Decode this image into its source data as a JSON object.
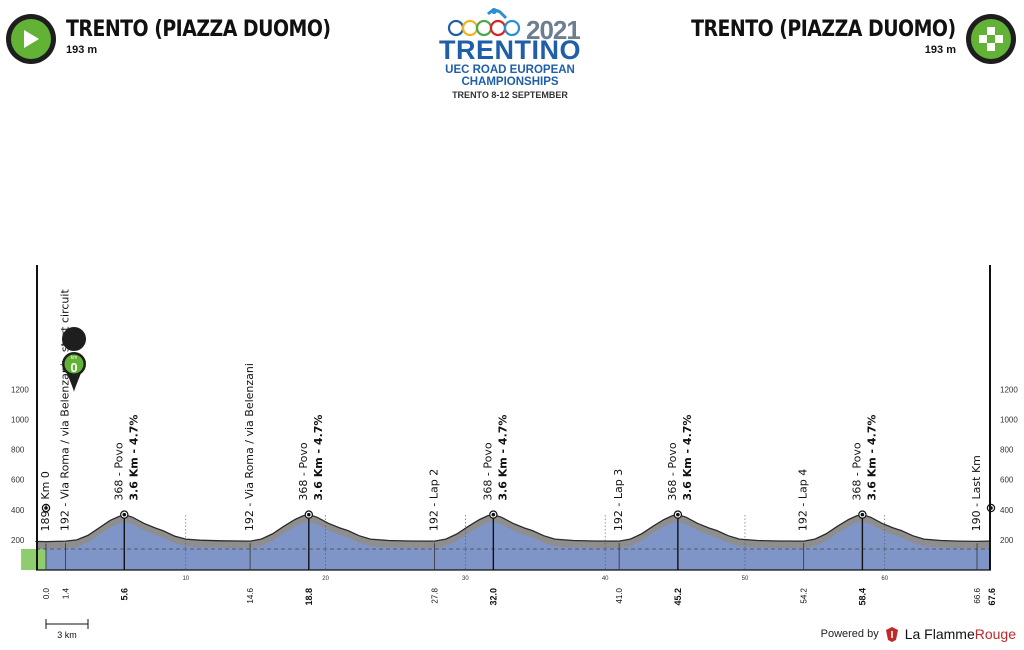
{
  "header": {
    "start": {
      "name": "TRENTO (PIAZZA DUOMO)",
      "altitude": "193 m"
    },
    "finish": {
      "name": "TRENTO (PIAZZA DUOMO)",
      "altitude": "193 m"
    },
    "logo": {
      "year": "2021",
      "name": "TRENTINO",
      "line1": "UEC ROAD EUROPEAN",
      "line2": "CHAMPIONSHIPS",
      "dates": "TRENTO 8-12 SEPTEMBER"
    }
  },
  "km0_marker": {
    "top": "km",
    "bottom": "0"
  },
  "scale_bar_label": "3 km",
  "footer": {
    "powered": "Powered by",
    "brand_a": "La Flamme",
    "brand_b": "Rouge"
  },
  "colors": {
    "profile_fill": "#7f95c8",
    "ground": "#8e8e8e",
    "neutral_zone": "#8fcc6e",
    "accent_green": "#62b335"
  },
  "chart_data": {
    "type": "area",
    "x_unit": "km",
    "y_unit": "m",
    "xlim": [
      -2.5,
      67.6
    ],
    "ylim": [
      0,
      1300
    ],
    "y_ticks": [
      200,
      400,
      600,
      800,
      1000,
      1200
    ],
    "x_ticks": [
      10,
      20,
      30,
      40,
      50,
      60
    ],
    "elevation": [
      [
        -2.5,
        193
      ],
      [
        -1.5,
        190
      ],
      [
        0,
        189
      ],
      [
        1.4,
        192
      ],
      [
        2.2,
        200
      ],
      [
        3,
        230
      ],
      [
        3.8,
        280
      ],
      [
        4.6,
        330
      ],
      [
        5.2,
        355
      ],
      [
        5.6,
        368
      ],
      [
        6.2,
        350
      ],
      [
        7,
        310
      ],
      [
        7.8,
        280
      ],
      [
        8.4,
        260
      ],
      [
        9.2,
        225
      ],
      [
        10,
        205
      ],
      [
        11,
        198
      ],
      [
        12.5,
        194
      ],
      [
        14.6,
        192
      ],
      [
        15.4,
        205
      ],
      [
        16.2,
        240
      ],
      [
        17,
        290
      ],
      [
        17.8,
        335
      ],
      [
        18.4,
        360
      ],
      [
        18.8,
        368
      ],
      [
        19.4,
        350
      ],
      [
        20.2,
        310
      ],
      [
        21,
        280
      ],
      [
        21.6,
        262
      ],
      [
        22.4,
        228
      ],
      [
        23.2,
        205
      ],
      [
        24.5,
        196
      ],
      [
        26,
        193
      ],
      [
        27.8,
        192
      ],
      [
        28.6,
        205
      ],
      [
        29.4,
        240
      ],
      [
        30.2,
        290
      ],
      [
        31,
        335
      ],
      [
        31.6,
        360
      ],
      [
        32,
        368
      ],
      [
        32.6,
        350
      ],
      [
        33.4,
        310
      ],
      [
        34.2,
        280
      ],
      [
        34.8,
        262
      ],
      [
        35.6,
        228
      ],
      [
        36.4,
        205
      ],
      [
        37.7,
        196
      ],
      [
        39.2,
        193
      ],
      [
        41,
        192
      ],
      [
        41.8,
        205
      ],
      [
        42.6,
        240
      ],
      [
        43.4,
        290
      ],
      [
        44.2,
        335
      ],
      [
        44.8,
        360
      ],
      [
        45.2,
        368
      ],
      [
        45.8,
        350
      ],
      [
        46.6,
        310
      ],
      [
        47.4,
        280
      ],
      [
        48,
        262
      ],
      [
        48.8,
        228
      ],
      [
        49.6,
        205
      ],
      [
        50.9,
        196
      ],
      [
        52.4,
        193
      ],
      [
        54.2,
        192
      ],
      [
        55,
        205
      ],
      [
        55.8,
        240
      ],
      [
        56.6,
        290
      ],
      [
        57.4,
        335
      ],
      [
        58,
        360
      ],
      [
        58.4,
        368
      ],
      [
        59,
        350
      ],
      [
        59.8,
        310
      ],
      [
        60.6,
        280
      ],
      [
        61.2,
        262
      ],
      [
        62,
        228
      ],
      [
        62.8,
        205
      ],
      [
        64,
        196
      ],
      [
        65.3,
        192
      ],
      [
        66.6,
        190
      ],
      [
        67.6,
        193
      ]
    ],
    "points": [
      {
        "km": 0.0,
        "km_label": "0.0",
        "label": "189 - Km 0",
        "style": "plain"
      },
      {
        "km": 1.4,
        "km_label": "1.4",
        "label": "192 - Via Roma / via Belenzani - start circuit",
        "style": "plain"
      },
      {
        "km": 5.6,
        "km_label": "5.6",
        "label": "368 - Povo",
        "label2": "3.6 Km - 4.7%",
        "style": "climb"
      },
      {
        "km": 14.6,
        "km_label": "14.6",
        "label": "192 - Via Roma / via Belenzani",
        "style": "plain"
      },
      {
        "km": 18.8,
        "km_label": "18.8",
        "label": "368 - Povo",
        "label2": "3.6 Km - 4.7%",
        "style": "climb"
      },
      {
        "km": 27.8,
        "km_label": "27.8",
        "label": "192 - Lap 2",
        "style": "plain"
      },
      {
        "km": 32.0,
        "km_label": "32.0",
        "label": "368 - Povo",
        "label2": "3.6 Km - 4.7%",
        "style": "climb"
      },
      {
        "km": 41.0,
        "km_label": "41.0",
        "label": "192 - Lap 3",
        "style": "plain"
      },
      {
        "km": 45.2,
        "km_label": "45.2",
        "label": "368 - Povo",
        "label2": "3.6 Km - 4.7%",
        "style": "climb"
      },
      {
        "km": 54.2,
        "km_label": "54.2",
        "label": "192 - Lap 4",
        "style": "plain"
      },
      {
        "km": 58.4,
        "km_label": "58.4",
        "label": "368 - Povo",
        "label2": "3.6 Km - 4.7%",
        "style": "climb"
      },
      {
        "km": 66.6,
        "km_label": "66.6",
        "label": "190 - Last Km",
        "style": "plain"
      },
      {
        "km": 67.6,
        "km_label": "67.6",
        "label": "",
        "style": "finish"
      }
    ]
  }
}
